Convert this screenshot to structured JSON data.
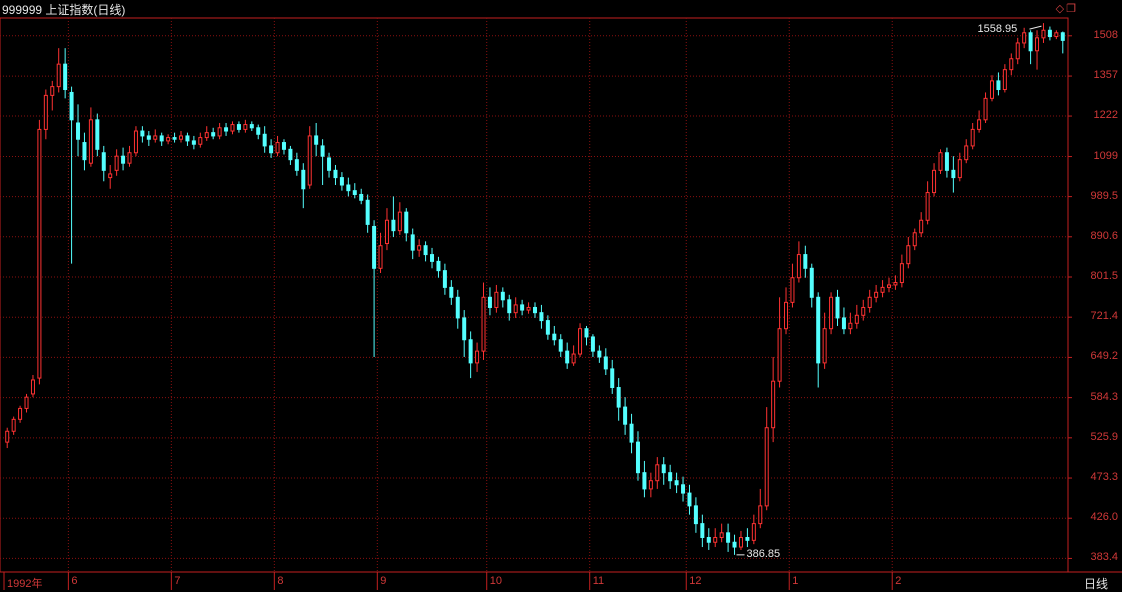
{
  "title": "999999 上证指数(日线)",
  "period_label": "日线",
  "corner_icons": [
    "diamond-icon",
    "restore-window-icon"
  ],
  "colors": {
    "up": "#ff3232",
    "down": "#54ffff",
    "grid": "#8a1010",
    "axis": "#c42020",
    "text": "#d03838"
  },
  "chart_data": {
    "type": "candlestick",
    "y_axis_labels": [
      "1508",
      "1357",
      "1222",
      "1099",
      "989.5",
      "890.6",
      "801.5",
      "721.4",
      "649.2",
      "584.3",
      "525.9",
      "473.3",
      "426.0",
      "383.4"
    ],
    "x_axis_labels": [
      "1992年",
      "6",
      "7",
      "8",
      "9",
      "10",
      "11",
      "12",
      "1",
      "2"
    ],
    "high_marker": "1558.95",
    "low_marker": "386.85",
    "ylim": [
      370,
      1580
    ],
    "scale": "log",
    "grid": true,
    "series": [
      [
        520,
        535,
        512,
        540
      ],
      [
        535,
        552,
        530,
        556
      ],
      [
        552,
        568,
        547,
        572
      ],
      [
        568,
        585,
        562,
        590
      ],
      [
        590,
        612,
        585,
        620
      ],
      [
        615,
        1180,
        605,
        1210
      ],
      [
        1180,
        1290,
        1150,
        1310
      ],
      [
        1290,
        1320,
        1240,
        1340
      ],
      [
        1320,
        1400,
        1300,
        1460
      ],
      [
        1400,
        1310,
        1280,
        1460
      ],
      [
        1300,
        1210,
        830,
        1320
      ],
      [
        1200,
        1150,
        1100,
        1260
      ],
      [
        1140,
        1090,
        1060,
        1170
      ],
      [
        1080,
        1210,
        1070,
        1250
      ],
      [
        1210,
        1120,
        1100,
        1230
      ],
      [
        1110,
        1060,
        1030,
        1130
      ],
      [
        1040,
        1050,
        1010,
        1075
      ],
      [
        1060,
        1100,
        1045,
        1120
      ],
      [
        1100,
        1080,
        1060,
        1125
      ],
      [
        1080,
        1110,
        1070,
        1130
      ],
      [
        1110,
        1175,
        1100,
        1190
      ],
      [
        1175,
        1160,
        1140,
        1190
      ],
      [
        1160,
        1150,
        1130,
        1175
      ],
      [
        1150,
        1160,
        1140,
        1180
      ],
      [
        1160,
        1145,
        1130,
        1170
      ],
      [
        1145,
        1155,
        1135,
        1165
      ],
      [
        1155,
        1150,
        1140,
        1170
      ],
      [
        1150,
        1160,
        1140,
        1175
      ],
      [
        1160,
        1145,
        1130,
        1170
      ],
      [
        1145,
        1135,
        1120,
        1160
      ],
      [
        1135,
        1155,
        1125,
        1170
      ],
      [
        1155,
        1170,
        1145,
        1190
      ],
      [
        1170,
        1160,
        1150,
        1185
      ],
      [
        1160,
        1185,
        1150,
        1200
      ],
      [
        1185,
        1175,
        1160,
        1200
      ],
      [
        1175,
        1195,
        1165,
        1205
      ],
      [
        1195,
        1180,
        1170,
        1205
      ],
      [
        1180,
        1195,
        1170,
        1210
      ],
      [
        1195,
        1185,
        1175,
        1205
      ],
      [
        1185,
        1165,
        1150,
        1195
      ],
      [
        1165,
        1130,
        1110,
        1190
      ],
      [
        1130,
        1110,
        1095,
        1150
      ],
      [
        1110,
        1140,
        1100,
        1160
      ],
      [
        1140,
        1120,
        1105,
        1150
      ],
      [
        1120,
        1090,
        1075,
        1130
      ],
      [
        1090,
        1060,
        1045,
        1110
      ],
      [
        1060,
        1010,
        960,
        1080
      ],
      [
        1020,
        1160,
        1010,
        1190
      ],
      [
        1160,
        1135,
        1100,
        1200
      ],
      [
        1130,
        1100,
        1020,
        1150
      ],
      [
        1095,
        1060,
        1040,
        1110
      ],
      [
        1060,
        1040,
        1020,
        1075
      ],
      [
        1040,
        1020,
        1005,
        1055
      ],
      [
        1020,
        1005,
        990,
        1040
      ],
      [
        1005,
        995,
        985,
        1025
      ],
      [
        995,
        980,
        970,
        1010
      ],
      [
        980,
        920,
        900,
        995
      ],
      [
        915,
        820,
        650,
        930
      ],
      [
        820,
        870,
        810,
        900
      ],
      [
        875,
        930,
        860,
        960
      ],
      [
        930,
        905,
        890,
        990
      ],
      [
        905,
        950,
        895,
        975
      ],
      [
        950,
        900,
        880,
        960
      ],
      [
        895,
        860,
        840,
        910
      ],
      [
        860,
        870,
        845,
        885
      ],
      [
        870,
        850,
        835,
        880
      ],
      [
        850,
        835,
        820,
        865
      ],
      [
        835,
        815,
        800,
        845
      ],
      [
        815,
        780,
        765,
        830
      ],
      [
        780,
        760,
        745,
        795
      ],
      [
        760,
        720,
        700,
        775
      ],
      [
        720,
        680,
        650,
        735
      ],
      [
        680,
        640,
        615,
        695
      ],
      [
        640,
        660,
        625,
        675
      ],
      [
        660,
        760,
        645,
        790
      ],
      [
        760,
        740,
        725,
        780
      ],
      [
        740,
        770,
        730,
        785
      ],
      [
        770,
        755,
        740,
        780
      ],
      [
        755,
        730,
        715,
        765
      ],
      [
        730,
        745,
        720,
        760
      ],
      [
        745,
        735,
        725,
        755
      ],
      [
        735,
        740,
        728,
        750
      ],
      [
        740,
        730,
        720,
        750
      ],
      [
        730,
        715,
        700,
        745
      ],
      [
        715,
        690,
        680,
        725
      ],
      [
        690,
        680,
        670,
        705
      ],
      [
        680,
        660,
        650,
        690
      ],
      [
        660,
        640,
        630,
        675
      ],
      [
        640,
        655,
        635,
        670
      ],
      [
        655,
        700,
        650,
        710
      ],
      [
        700,
        685,
        670,
        705
      ],
      [
        685,
        660,
        650,
        690
      ],
      [
        660,
        650,
        640,
        670
      ],
      [
        650,
        630,
        620,
        665
      ],
      [
        630,
        600,
        590,
        645
      ],
      [
        600,
        570,
        550,
        615
      ],
      [
        570,
        545,
        530,
        585
      ],
      [
        545,
        520,
        505,
        560
      ],
      [
        520,
        480,
        470,
        535
      ],
      [
        480,
        460,
        450,
        495
      ],
      [
        460,
        470,
        450,
        480
      ],
      [
        470,
        490,
        460,
        500
      ],
      [
        490,
        480,
        465,
        500
      ],
      [
        480,
        470,
        460,
        490
      ],
      [
        470,
        465,
        455,
        480
      ],
      [
        465,
        455,
        445,
        475
      ],
      [
        455,
        440,
        430,
        465
      ],
      [
        440,
        420,
        410,
        450
      ],
      [
        420,
        405,
        395,
        430
      ],
      [
        405,
        400,
        392,
        415
      ],
      [
        400,
        405,
        395,
        415
      ],
      [
        405,
        410,
        400,
        420
      ],
      [
        410,
        400,
        390,
        420
      ],
      [
        400,
        395,
        387,
        408
      ],
      [
        395,
        405,
        392,
        412
      ],
      [
        405,
        402,
        395,
        415
      ],
      [
        402,
        420,
        398,
        430
      ],
      [
        420,
        440,
        415,
        460
      ],
      [
        440,
        540,
        435,
        570
      ],
      [
        540,
        610,
        520,
        650
      ],
      [
        610,
        700,
        600,
        760
      ],
      [
        700,
        750,
        690,
        780
      ],
      [
        750,
        800,
        740,
        830
      ],
      [
        800,
        850,
        790,
        880
      ],
      [
        850,
        820,
        800,
        870
      ],
      [
        820,
        760,
        740,
        830
      ],
      [
        760,
        640,
        600,
        770
      ],
      [
        640,
        700,
        630,
        730
      ],
      [
        700,
        760,
        690,
        770
      ],
      [
        760,
        720,
        705,
        775
      ],
      [
        720,
        700,
        690,
        740
      ],
      [
        700,
        710,
        690,
        730
      ],
      [
        710,
        725,
        700,
        745
      ],
      [
        725,
        740,
        715,
        755
      ],
      [
        740,
        760,
        730,
        775
      ],
      [
        760,
        770,
        750,
        785
      ],
      [
        770,
        780,
        760,
        795
      ],
      [
        780,
        785,
        770,
        800
      ],
      [
        785,
        790,
        775,
        805
      ],
      [
        790,
        830,
        780,
        850
      ],
      [
        830,
        870,
        820,
        890
      ],
      [
        870,
        900,
        860,
        910
      ],
      [
        900,
        930,
        890,
        950
      ],
      [
        930,
        1000,
        920,
        1030
      ],
      [
        1000,
        1060,
        990,
        1080
      ],
      [
        1060,
        1110,
        1050,
        1120
      ],
      [
        1110,
        1060,
        1040,
        1125
      ],
      [
        1060,
        1040,
        1000,
        1100
      ],
      [
        1040,
        1090,
        1030,
        1110
      ],
      [
        1090,
        1130,
        1080,
        1150
      ],
      [
        1130,
        1180,
        1120,
        1200
      ],
      [
        1180,
        1210,
        1170,
        1240
      ],
      [
        1210,
        1280,
        1200,
        1300
      ],
      [
        1280,
        1340,
        1270,
        1360
      ],
      [
        1340,
        1310,
        1290,
        1370
      ],
      [
        1310,
        1380,
        1300,
        1400
      ],
      [
        1380,
        1420,
        1360,
        1440
      ],
      [
        1420,
        1480,
        1400,
        1500
      ],
      [
        1480,
        1520,
        1460,
        1540
      ],
      [
        1520,
        1450,
        1400,
        1530
      ],
      [
        1450,
        1500,
        1380,
        1530
      ],
      [
        1500,
        1530,
        1480,
        1559
      ],
      [
        1530,
        1505,
        1490,
        1545
      ],
      [
        1505,
        1520,
        1495,
        1530
      ],
      [
        1520,
        1490,
        1440,
        1525
      ]
    ]
  }
}
